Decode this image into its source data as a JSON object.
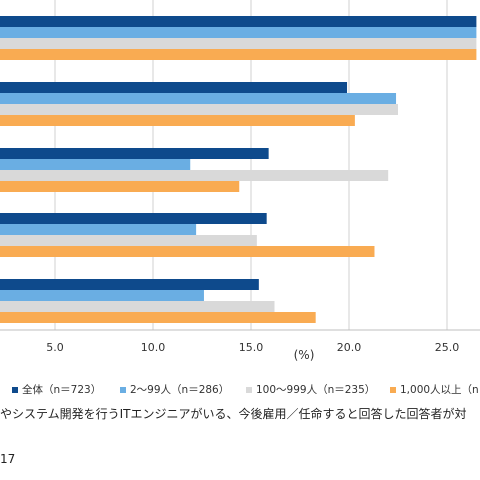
{
  "chart_data": {
    "type": "bar",
    "orientation": "horizontal",
    "categories": [
      "",
      "",
      "",
      "",
      ""
    ],
    "series": [
      {
        "name": "全体（n＝723）",
        "color": "#0e4a8c",
        "values": [
          26.5,
          19.9,
          15.9,
          15.8,
          15.4
        ]
      },
      {
        "name": "2〜99人（n＝286）",
        "color": "#6aaee3",
        "values": [
          26.5,
          22.4,
          11.9,
          12.2,
          12.6
        ]
      },
      {
        "name": "100〜999人（n＝235）",
        "color": "#d9d9d9",
        "values": [
          26.5,
          22.5,
          22.0,
          15.3,
          16.2
        ]
      },
      {
        "name": "1,000人以上（n",
        "color": "#f9ab52",
        "values": [
          26.5,
          20.3,
          14.4,
          21.3,
          18.3
        ]
      }
    ],
    "xlim": [
      0,
      27
    ],
    "xticks": [
      "5.0",
      "10.0",
      "15.0",
      "20.0",
      "25.0"
    ],
    "xlabel": "(%)",
    "grid": true
  },
  "note": "やシステム開発を行うITエンジニアがいる、今後雇用／任命すると回答した回答者が対",
  "year_fragment": "17"
}
